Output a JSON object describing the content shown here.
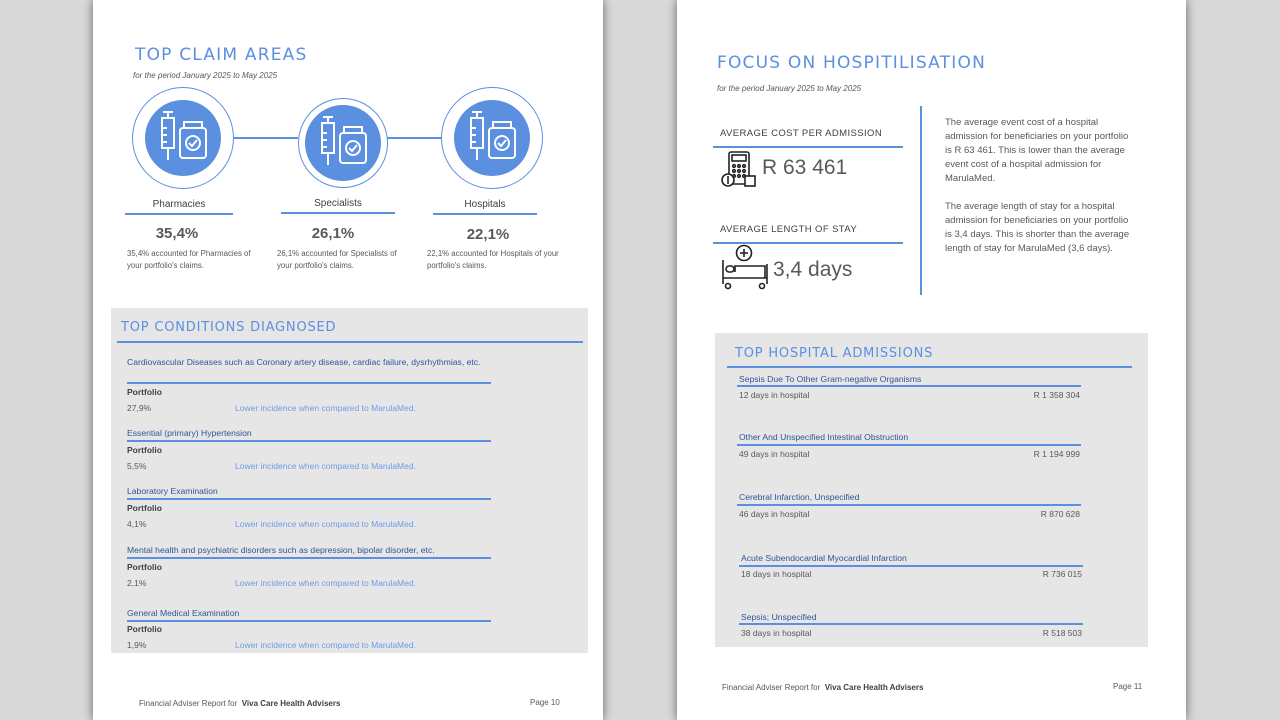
{
  "page10": {
    "title": "TOP CLAIM AREAS",
    "period": "for the period January 2025 to May 2025",
    "claim_areas": [
      {
        "label": "Pharmacies",
        "pct": "35,4%",
        "desc": "35,4% accounted for Pharmacies of your portfolio's claims."
      },
      {
        "label": "Specialists",
        "pct": "26,1%",
        "desc": "26,1% accounted for Specialists of your portfolio's claims."
      },
      {
        "label": "Hospitals",
        "pct": "22,1%",
        "desc": "22,1% accounted for Hospitals of your portfolio's claims."
      }
    ],
    "conditions_title": "TOP CONDITIONS DIAGNOSED",
    "conditions": [
      {
        "name": "Cardiovascular Diseases such as Coronary artery disease, cardiac failure, dysrhythmias, etc.",
        "portfolio_label": "Portfolio",
        "value": "27,9%",
        "note": "Lower incidence when compared to MarulaMed."
      },
      {
        "name": "Essential (primary) Hypertension",
        "portfolio_label": "Portfolio",
        "value": "5,5%",
        "note": "Lower incidence when compared to MarulaMed."
      },
      {
        "name": "Laboratory Examination",
        "portfolio_label": "Portfolio",
        "value": "4,1%",
        "note": "Lower incidence when compared to MarulaMed."
      },
      {
        "name": "Mental health and psychiatric disorders such as depression, bipolar disorder, etc.",
        "portfolio_label": "Portfolio",
        "value": "2,1%",
        "note": "Lower incidence when compared to MarulaMed."
      },
      {
        "name": "General Medical Examination",
        "portfolio_label": "Portfolio",
        "value": "1,9%",
        "note": "Lower incidence when compared to MarulaMed."
      }
    ],
    "footer_prefix": "Financial Adviser Report for",
    "footer_company": "Viva Care Health Advisers",
    "page_number": "Page 10"
  },
  "page11": {
    "title": "FOCUS ON HOSPITILISATION",
    "period": "for the period January 2025 to May 2025",
    "avg_cost_label": "AVERAGE COST PER ADMISSION",
    "avg_cost_value": "R 63 461",
    "avg_stay_label": "AVERAGE LENGTH OF STAY",
    "avg_stay_value": "3,4 days",
    "para1": "The average event cost of a hospital admission for beneficiaries on your portfolio is R 63 461. This is lower than the average event cost of a hospital admission for MarulaMed.",
    "para2": "The average length of stay for a hospital admission for beneficiaries on your portfolio is 3,4 days. This is shorter than the average length of stay for  MarulaMed (3,6 days).",
    "admissions_title": "TOP HOSPITAL ADMISSIONS",
    "admissions": [
      {
        "name": "Sepsis Due To Other Gram-negative Organisms",
        "days": "12 days in hospital",
        "cost": "R 1 358 304"
      },
      {
        "name": "Other And Unspecified Intestinal Obstruction",
        "days": "49 days in hospital",
        "cost": "R 1 194 999"
      },
      {
        "name": "Cerebral Infarction, Unspecified",
        "days": "46 days in hospital",
        "cost": "R 870 628"
      },
      {
        "name": "Acute Subendocardial Myocardial Infarction",
        "days": "18 days in hospital",
        "cost": "R 736 015"
      },
      {
        "name": "Sepsis; Unspecified",
        "days": "38 days in hospital",
        "cost": "R 518 503"
      }
    ],
    "footer_prefix": "Financial Adviser Report for",
    "footer_company": "Viva Care Health Advisers",
    "page_number": "Page 11"
  },
  "colors": {
    "accent": "#5b8fe0",
    "panel": "#e6e6e6",
    "dark_blue": "#2f5597"
  },
  "icons": [
    "syringe-medicine-icon",
    "calculator-money-icon",
    "hospital-bed-icon"
  ]
}
